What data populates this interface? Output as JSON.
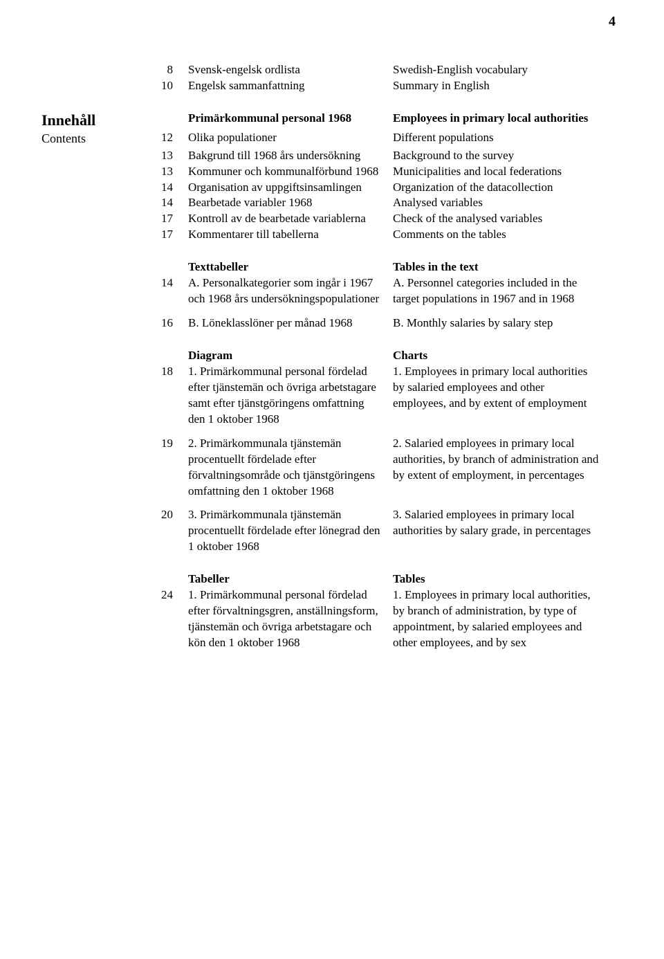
{
  "page_number": "4",
  "side": {
    "heading": "Innehåll",
    "sub": "Contents"
  },
  "top_rows": [
    {
      "n": "8",
      "sv": "Svensk-engelsk ordlista",
      "en": "Swedish-English vocabulary"
    },
    {
      "n": "10",
      "sv": "Engelsk sammanfattning",
      "en": "Summary in English"
    }
  ],
  "section1": {
    "sv_head": "Primärkommunal personal 1968",
    "en_head": "Employees in primary local authorities",
    "rows": [
      {
        "n": "12",
        "sv": "Olika populationer",
        "en": "Different populations"
      },
      {
        "n": "13",
        "sv": "Bakgrund till 1968 års undersökning",
        "en": "Background to the survey"
      },
      {
        "n": "13",
        "sv": "Kommuner och kommunalförbund 1968",
        "en": "Municipalities and local federations"
      },
      {
        "n": "14",
        "sv": "Organisation av uppgiftsinsamlingen",
        "en": "Organization of the datacollection"
      },
      {
        "n": "14",
        "sv": "Bearbetade variabler 1968",
        "en": "Analysed variables"
      },
      {
        "n": "17",
        "sv": "Kontroll av de bearbetade variablerna",
        "en": "Check of the analysed variables"
      },
      {
        "n": "17",
        "sv": "Kommentarer till tabellerna",
        "en": "Comments on the tables"
      }
    ]
  },
  "section2": {
    "sv_head": "Texttabeller",
    "en_head": "Tables in the text",
    "rows": [
      {
        "n": "14",
        "sv": "A. Personalkategorier som ingår i 1967 och 1968 års undersökningspopulationer",
        "en": "A. Personnel categories included in the target populations in 1967 and in 1968"
      },
      {
        "n": "16",
        "sv": "B. Löneklasslöner per månad 1968",
        "en": "B. Monthly salaries by salary step"
      }
    ]
  },
  "section3": {
    "sv_head": "Diagram",
    "en_head": "Charts",
    "rows": [
      {
        "n": "18",
        "sv": "1. Primärkommunal personal fördelad efter tjänstemän och övriga arbetstagare samt efter tjänstgöringens omfattning den 1 oktober 1968",
        "en": "1. Employees in primary local authorities by salaried employees and other employees, and by extent of employment"
      },
      {
        "n": "19",
        "sv": "2. Primärkommunala tjänstemän procentuellt fördelade efter förvaltningsområde och tjänstgöringens omfattning den 1 oktober 1968",
        "en": "2. Salaried employees in primary local authorities, by branch of administration and by extent of employment, in percentages"
      },
      {
        "n": "20",
        "sv": "3. Primärkommunala tjänstemän procentuellt fördelade efter lönegrad den 1 oktober 1968",
        "en": "3. Salaried employees in primary local authorities by salary grade, in percentages"
      }
    ]
  },
  "section4": {
    "sv_head": "Tabeller",
    "en_head": "Tables",
    "rows": [
      {
        "n": "24",
        "sv": "1. Primärkommunal personal fördelad efter förvaltningsgren, anställningsform, tjänstemän och övriga arbetstagare och kön den 1 oktober 1968",
        "en": "1. Employees in primary local authorities, by branch of administration, by type of appointment, by salaried employees and other employees, and by sex"
      }
    ]
  }
}
